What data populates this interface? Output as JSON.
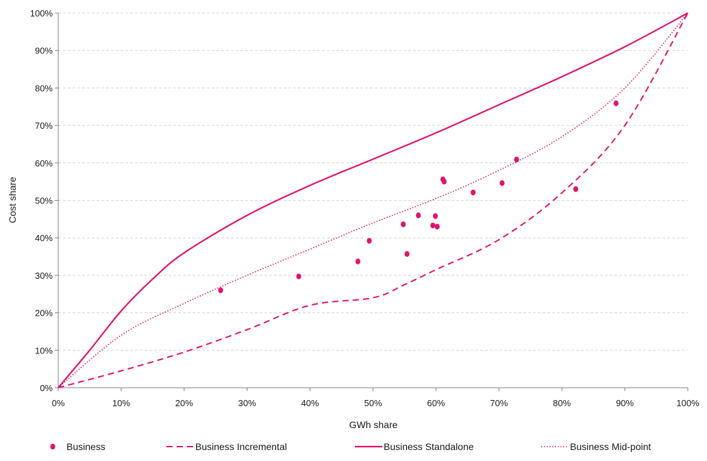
{
  "chart_data": {
    "type": "scatter",
    "title": "",
    "xlabel": "GWh share",
    "ylabel": "Cost share",
    "xlim": [
      0,
      100
    ],
    "ylim": [
      0,
      100
    ],
    "x_ticks": [
      "0%",
      "10%",
      "20%",
      "30%",
      "40%",
      "50%",
      "60%",
      "70%",
      "80%",
      "90%",
      "100%"
    ],
    "y_ticks": [
      "0%",
      "10%",
      "20%",
      "30%",
      "40%",
      "50%",
      "60%",
      "70%",
      "80%",
      "90%",
      "100%"
    ],
    "grid": "horizontal dashed",
    "legend_position": "bottom",
    "series_color": "#e0146e",
    "series": [
      {
        "name": "Business",
        "kind": "points",
        "points": [
          [
            25.8,
            26
          ],
          [
            38.2,
            29.7
          ],
          [
            47.6,
            33.7
          ],
          [
            49.4,
            39.2
          ],
          [
            54.8,
            43.6
          ],
          [
            55.4,
            35.7
          ],
          [
            57.2,
            46
          ],
          [
            59.5,
            43.3
          ],
          [
            59.9,
            45.8
          ],
          [
            60.2,
            43
          ],
          [
            61.1,
            55.6
          ],
          [
            61.3,
            55
          ],
          [
            65.9,
            52.1
          ],
          [
            70.5,
            54.6
          ],
          [
            72.8,
            60.9
          ],
          [
            82.2,
            53
          ],
          [
            88.6,
            75.9
          ]
        ]
      },
      {
        "name": "Business Incremental",
        "kind": "dashed-line",
        "points": [
          [
            0,
            0
          ],
          [
            10,
            4.5
          ],
          [
            20,
            9.5
          ],
          [
            30,
            15.5
          ],
          [
            40,
            22
          ],
          [
            50,
            24
          ],
          [
            55,
            27.5
          ],
          [
            60,
            31.5
          ],
          [
            70,
            39.5
          ],
          [
            80,
            52
          ],
          [
            90,
            70
          ],
          [
            100,
            100
          ]
        ]
      },
      {
        "name": "Business Standalone",
        "kind": "solid-line",
        "points": [
          [
            0,
            0
          ],
          [
            5,
            10
          ],
          [
            10,
            20.5
          ],
          [
            15,
            29
          ],
          [
            20,
            36
          ],
          [
            30,
            46
          ],
          [
            40,
            54
          ],
          [
            50,
            61
          ],
          [
            60,
            68
          ],
          [
            70,
            75.5
          ],
          [
            80,
            83
          ],
          [
            90,
            91
          ],
          [
            100,
            100
          ]
        ]
      },
      {
        "name": "Business Mid-point",
        "kind": "dotted-line",
        "points": [
          [
            0,
            0
          ],
          [
            10,
            14
          ],
          [
            20,
            22.5
          ],
          [
            30,
            30
          ],
          [
            40,
            37
          ],
          [
            50,
            44
          ],
          [
            60,
            50.5
          ],
          [
            70,
            58
          ],
          [
            80,
            67
          ],
          [
            90,
            80
          ],
          [
            100,
            100
          ]
        ]
      }
    ]
  }
}
